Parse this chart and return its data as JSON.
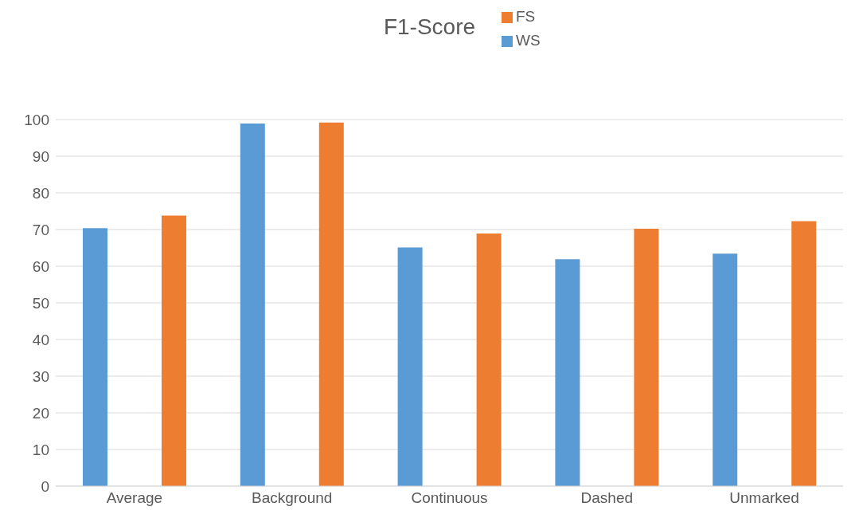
{
  "chart_data": {
    "type": "bar",
    "title": "F1-Score",
    "categories": [
      "Average",
      "Background",
      "Continuous",
      "Dashed",
      "Unmarked"
    ],
    "series": [
      {
        "name": "WS",
        "color": "#5b9bd5",
        "values": [
          70.4,
          98.9,
          65.1,
          61.9,
          63.4
        ]
      },
      {
        "name": "FS",
        "color": "#ed7d31",
        "values": [
          73.8,
          99.2,
          68.9,
          70.2,
          72.3
        ]
      }
    ],
    "ylim": [
      0,
      100
    ],
    "yticks": [
      0,
      10,
      20,
      30,
      40,
      50,
      60,
      70,
      80,
      90,
      100
    ],
    "grid": "y",
    "legend": "top"
  }
}
